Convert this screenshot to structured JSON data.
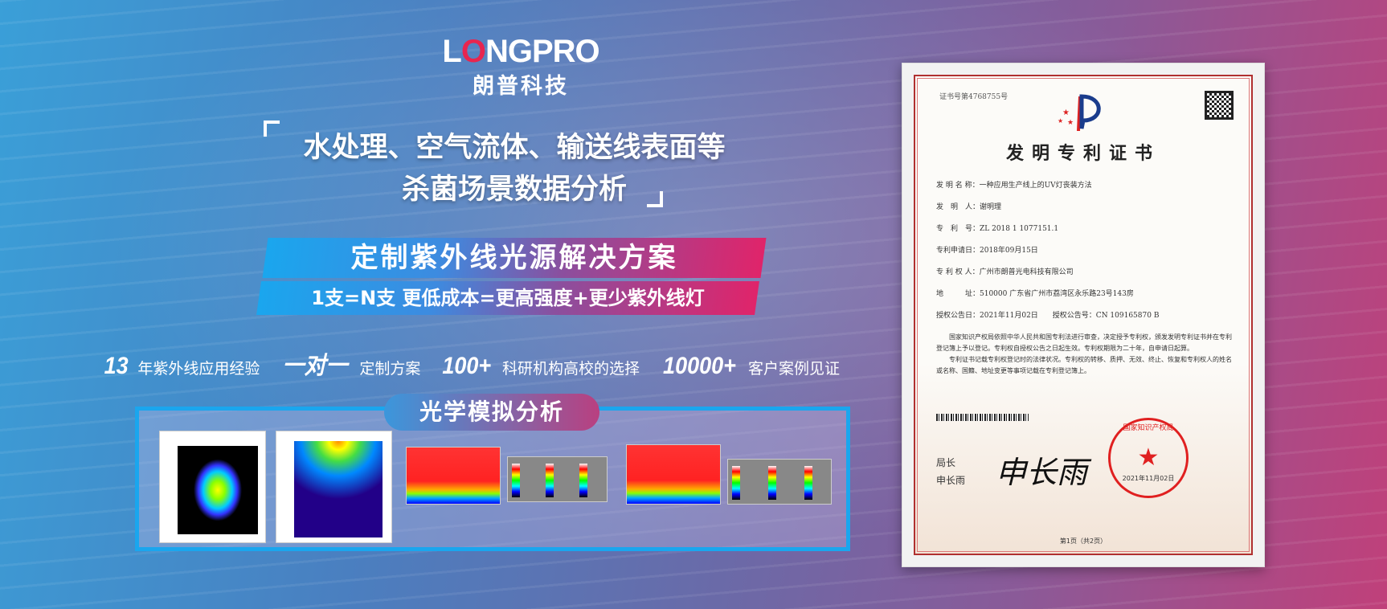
{
  "logo": {
    "en_prefix": "L",
    "en_o": "O",
    "en_rest": "NGPRO",
    "cn": "朗普科技"
  },
  "headline": {
    "line1": "水处理、空气流体、输送线表面等",
    "line2": "杀菌场景数据分析"
  },
  "banner": {
    "title": "定制紫外线光源解决方案",
    "subtitle": "1支=N支  更低成本=更高强度+更少紫外线灯"
  },
  "features": [
    {
      "big": "13",
      "text": "年紫外线应用经验"
    },
    {
      "big": "一对一",
      "text": "定制方案"
    },
    {
      "big": "100+",
      "text": "科研机构高校的选择"
    },
    {
      "big": "10000+",
      "text": "客户案例见证"
    }
  ],
  "optical": {
    "label": "光学模拟分析"
  },
  "certificate": {
    "number": "证书号第4768755号",
    "title": "发明专利证书",
    "fields": [
      "发 明 名 称：一种应用生产线上的UV灯丧装方法",
      "发　明　人：谢明理",
      "专　利　号：ZL 2018 1 1077151.1",
      "专利申请日：2018年09月15日",
      "专 利 权 人：广州市朗普光电科技有限公司",
      "地　　　址：510000 广东省广州市荔湾区永乐路23号143房",
      "授权公告日：2021年11月02日　　授权公告号：CN 109165870 B"
    ],
    "paragraph1": "国家知识产权局依照中华人民共和国专利法进行审查，决定授予专利权，颁发发明专利证书并在专利登记簿上予以登记。专利权自授权公告之日起生效。专利权期限为二十年，自申请日起算。",
    "paragraph2": "专利证书记载专利权登记时的法律状况。专利权的转移、质押、无效、终止、恢复和专利权人的姓名或名称、国籍、地址变更等事项记载在专利登记簿上。",
    "signer_title": "局长",
    "signer_name": "申长雨",
    "signature": "申长雨",
    "seal_text": "国家知识产权局",
    "seal_date": "2021年11月02日",
    "page": "第1页（共2页）"
  }
}
